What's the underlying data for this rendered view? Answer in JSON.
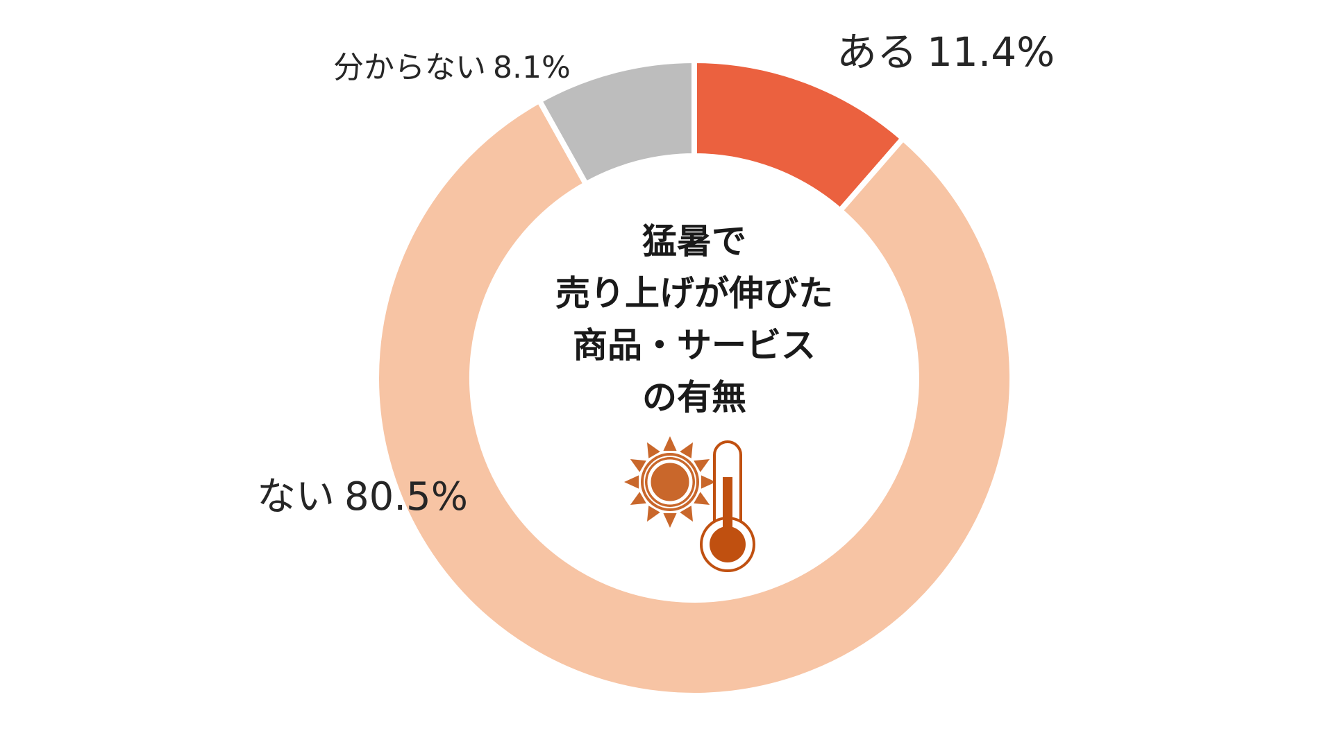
{
  "chart_data": {
    "type": "pie",
    "variant": "donut",
    "center_text": [
      "猛暑で",
      "売り上げが伸びた",
      "商品・サービス",
      "の有無"
    ],
    "slices": [
      {
        "label": "ある",
        "value": 11.4,
        "value_text": "11.4%",
        "color": "#EB613F"
      },
      {
        "label": "ない",
        "value": 80.5,
        "value_text": "80.5%",
        "color": "#F7C4A4"
      },
      {
        "label": "分からない",
        "value": 8.1,
        "value_text": "8.1%",
        "color": "#BDBDBD"
      }
    ],
    "start_angle": "12 o'clock",
    "direction": "clockwise",
    "icons": [
      "sun-icon",
      "thermometer-icon"
    ],
    "icon_colors": {
      "sun": "#C9672B",
      "thermometer": "#C05010"
    }
  }
}
